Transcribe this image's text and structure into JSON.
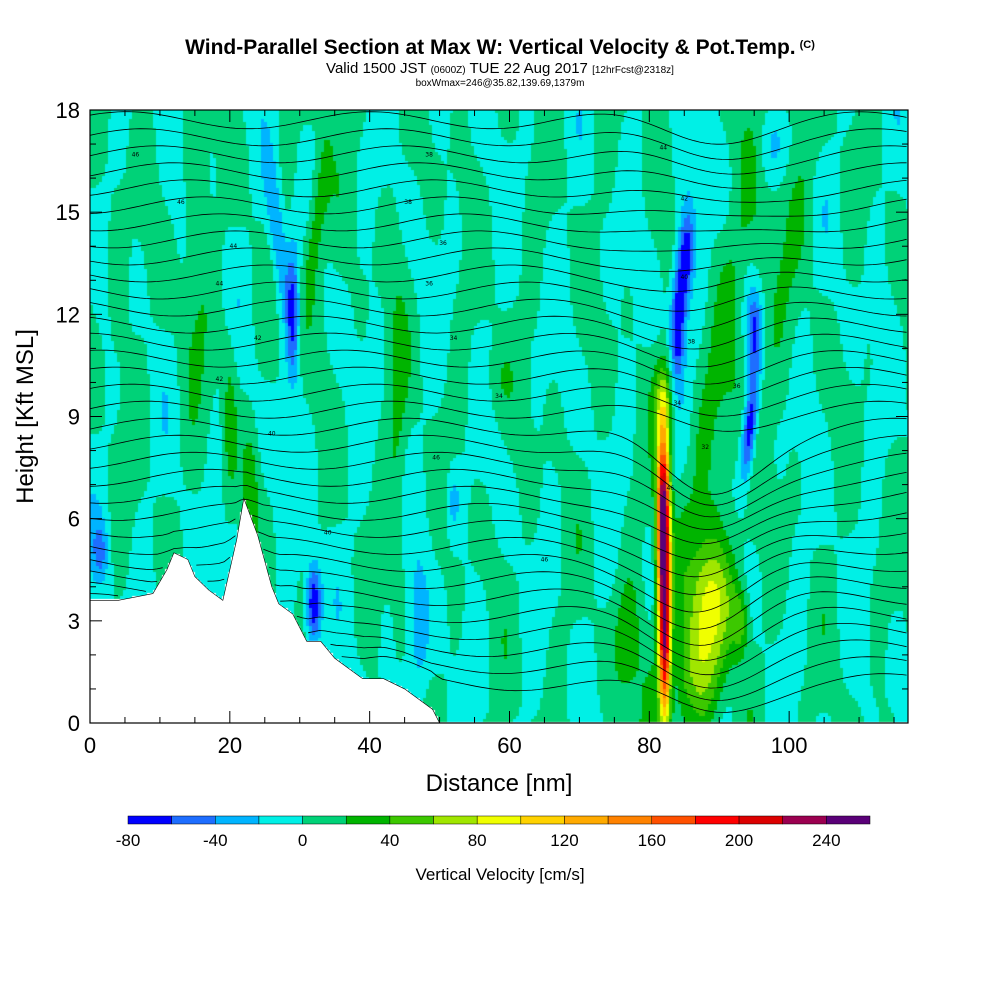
{
  "header": {
    "title": "Wind-Parallel Section at Max W: Vertical Velocity & Pot.Temp.",
    "title_mark": "(C)",
    "subtitle_main": "Valid 1500 JST",
    "subtitle_utc": "(0600Z)",
    "subtitle_date": "TUE 22 Aug 2017",
    "subtitle_fcst": "[12hrFcst@2318z]",
    "subtitle2": "boxWmax=246@35.82,139.69,1379m"
  },
  "chart_data": {
    "type": "heatmap",
    "xlabel": "Distance [nm]",
    "ylabel": "Height [Kft MSL]",
    "xlim": [
      0,
      117
    ],
    "ylim": [
      0,
      18
    ],
    "xticks": [
      0,
      20,
      40,
      60,
      80,
      100
    ],
    "yticks": [
      0,
      3,
      6,
      9,
      12,
      15,
      18
    ],
    "colorbar": {
      "title": "Vertical Velocity [cm/s]",
      "levels": [
        -80,
        -60,
        -40,
        -20,
        0,
        20,
        40,
        60,
        80,
        100,
        120,
        140,
        160,
        180,
        200,
        220,
        240,
        260
      ],
      "tick_labels": [
        "-80",
        "-40",
        "0",
        "40",
        "80",
        "120",
        "160",
        "200",
        "240"
      ],
      "colors": [
        "#0000ff",
        "#1e6eff",
        "#00b4ff",
        "#00f0e6",
        "#00d278",
        "#00b400",
        "#3cc800",
        "#a0e600",
        "#f0ff00",
        "#ffd200",
        "#ffaa00",
        "#ff8200",
        "#ff5000",
        "#ff0000",
        "#dc0000",
        "#9b0050",
        "#5a0078"
      ]
    },
    "max_w": 246,
    "theta_contour_labels": [
      "46",
      "46",
      "44",
      "44",
      "42",
      "42",
      "40",
      "40",
      "38",
      "38",
      "36",
      "36",
      "34",
      "34",
      "46",
      "46",
      "44",
      "42",
      "40",
      "38",
      "36",
      "34",
      "32"
    ],
    "terrain_profile": {
      "x_nm": [
        0,
        4,
        9,
        11,
        12,
        14,
        15,
        17,
        19,
        21,
        22,
        24,
        26,
        27,
        29,
        31,
        33,
        35,
        37,
        39,
        42,
        45,
        47,
        49,
        50
      ],
      "height_kft": [
        3.6,
        3.6,
        3.8,
        4.5,
        5.0,
        4.8,
        4.3,
        3.9,
        3.6,
        5.4,
        6.6,
        5.5,
        4.0,
        3.5,
        3.2,
        2.4,
        2.4,
        1.9,
        1.6,
        1.3,
        1.3,
        1.0,
        0.7,
        0.4,
        0.0
      ]
    }
  }
}
